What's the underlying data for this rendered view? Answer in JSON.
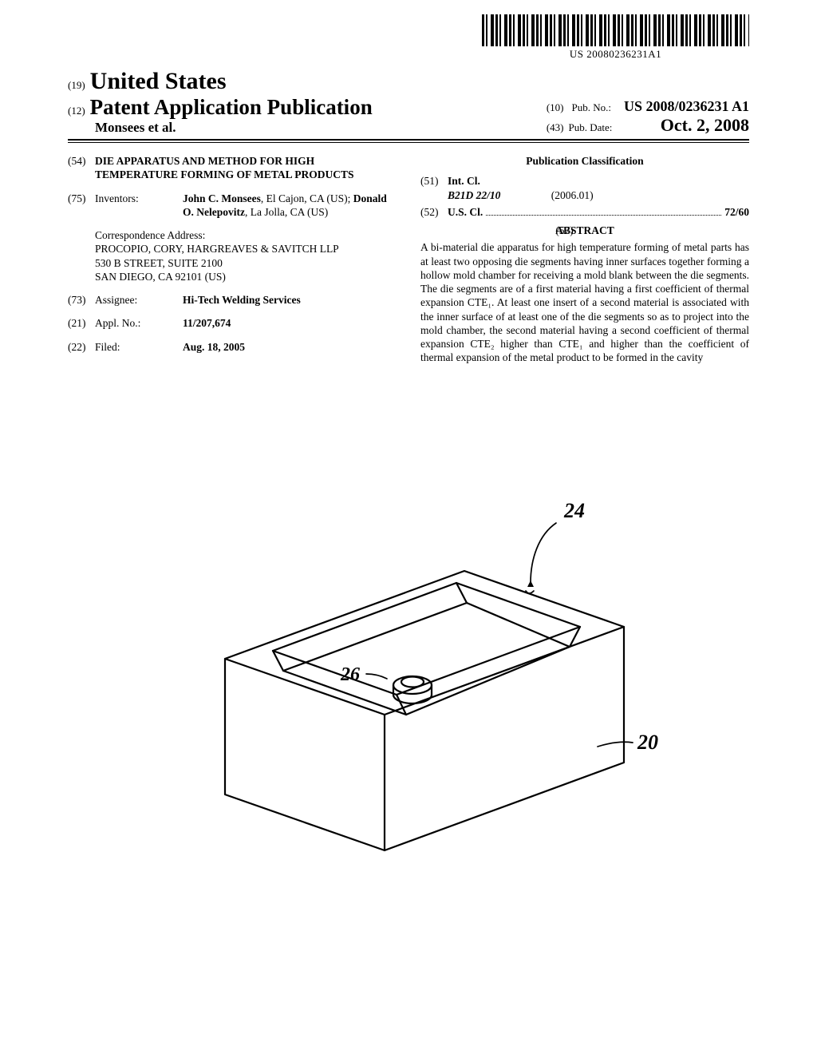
{
  "barcode_number": "US 20080236231A1",
  "header": {
    "code19": "(19)",
    "country": "United States",
    "code12": "(12)",
    "pub_type": "Patent Application Publication",
    "authors": "Monsees et al.",
    "code10": "(10)",
    "pub_no_label": "Pub. No.:",
    "pub_no": "US 2008/0236231 A1",
    "code43": "(43)",
    "pub_date_label": "Pub. Date:",
    "pub_date": "Oct. 2, 2008"
  },
  "left": {
    "f54": {
      "num": "(54)",
      "title": "DIE APPARATUS AND METHOD FOR HIGH TEMPERATURE FORMING OF METAL PRODUCTS"
    },
    "f75": {
      "num": "(75)",
      "label": "Inventors:",
      "value_html": "<b>John C. Monsees</b>, El Cajon, CA (US); <b>Donald O. Nelepovitz</b>, La Jolla, CA (US)"
    },
    "corr": {
      "label": "Correspondence Address:",
      "lines": [
        "PROCOPIO, CORY, HARGREAVES & SAVITCH LLP",
        "530 B STREET, SUITE 2100",
        "SAN DIEGO, CA 92101 (US)"
      ]
    },
    "f73": {
      "num": "(73)",
      "label": "Assignee:",
      "value": "Hi-Tech Welding Services"
    },
    "f21": {
      "num": "(21)",
      "label": "Appl. No.:",
      "value": "11/207,674"
    },
    "f22": {
      "num": "(22)",
      "label": "Filed:",
      "value": "Aug. 18, 2005"
    }
  },
  "right": {
    "pub_class": "Publication Classification",
    "f51": {
      "num": "(51)",
      "label": "Int. Cl.",
      "code": "B21D 22/10",
      "year": "(2006.01)"
    },
    "f52": {
      "num": "(52)",
      "label": "U.S. Cl.",
      "value": "72/60"
    },
    "f57": {
      "num": "(57)",
      "label": "ABSTRACT"
    },
    "abstract": "A bi-material die apparatus for high temperature forming of metal parts has at least two opposing die segments having inner surfaces together forming a hollow mold chamber for receiving a mold blank between the die segments. The die segments are of a first material having a first coefficient of thermal expansion CTE₁. At least one insert of a second material is associated with the inner surface of at least one of the die segments so as to project into the mold chamber, the second material having a second coefficient of thermal expansion CTE₂ higher than CTE₁ and higher than the coefficient of thermal expansion of the metal product to be formed in the cavity"
  },
  "figure": {
    "labels": {
      "a": "24",
      "b": "26",
      "c": "20"
    }
  }
}
